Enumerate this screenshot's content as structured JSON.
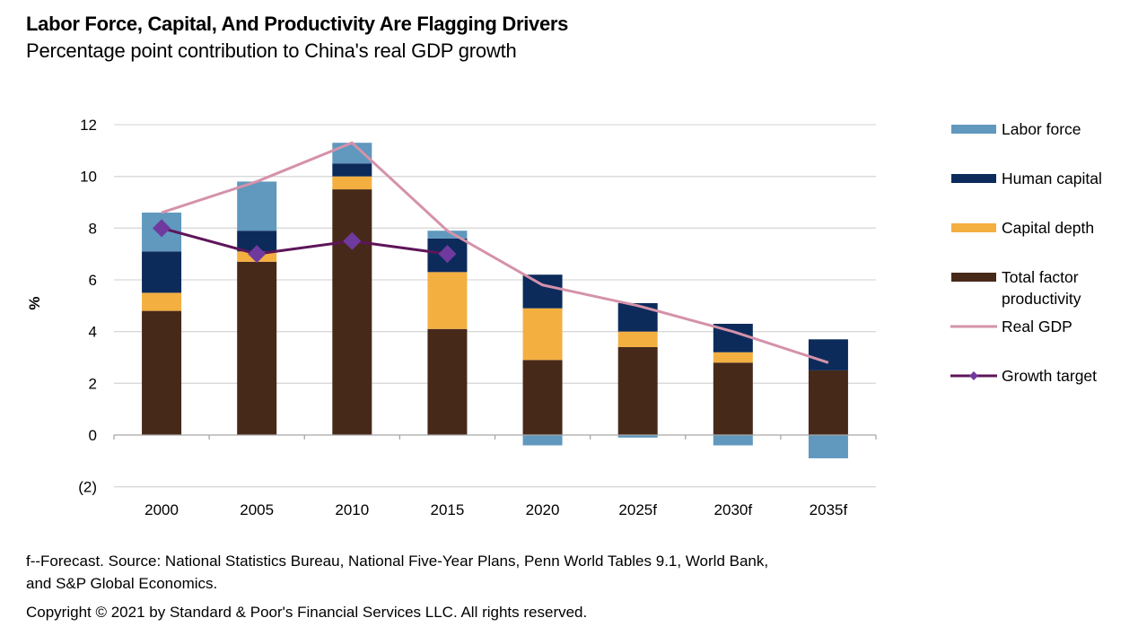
{
  "header": {
    "title": "Labor Force, Capital, And Productivity Are Flagging Drivers",
    "subtitle": "Percentage point contribution to China's real GDP growth"
  },
  "footer": {
    "source_line1": "f--Forecast. Source: National Statistics Bureau, National Five-Year Plans, Penn World Tables 9.1, World Bank,",
    "source_line2": "and S&P Global Economics.",
    "copyright": "Copyright © 2021 by Standard & Poor's Financial Services LLC. All rights reserved."
  },
  "chart_data": {
    "type": "bar",
    "stacked": true,
    "title": "Labor Force, Capital, And Productivity Are Flagging Drivers",
    "subtitle": "Percentage point contribution to China's real GDP growth",
    "xlabel": "",
    "ylabel": "%",
    "ylim": [
      -2,
      12
    ],
    "yticks": [
      -2,
      0,
      2,
      4,
      6,
      8,
      10,
      12
    ],
    "ytick_labels": [
      "(2)",
      "0",
      "2",
      "4",
      "6",
      "8",
      "10",
      "12"
    ],
    "grid": true,
    "legend_position": "right",
    "categories": [
      "2000",
      "2005",
      "2010",
      "2015",
      "2020",
      "2025f",
      "2030f",
      "2035f"
    ],
    "series": [
      {
        "name": "Total factor productivity",
        "kind": "bar",
        "color": "#47291A",
        "values": [
          4.8,
          6.7,
          9.5,
          4.1,
          2.9,
          3.4,
          2.8,
          2.5
        ]
      },
      {
        "name": "Capital depth",
        "kind": "bar",
        "color": "#F4AF41",
        "values": [
          0.7,
          0.4,
          0.5,
          2.2,
          2.0,
          0.6,
          0.4,
          0.0
        ]
      },
      {
        "name": "Human capital",
        "kind": "bar",
        "color": "#0C2B5B",
        "values": [
          1.6,
          0.8,
          0.5,
          1.3,
          1.3,
          1.1,
          1.1,
          1.2
        ]
      },
      {
        "name": "Labor force",
        "kind": "bar",
        "color": "#6098BE",
        "values": [
          1.5,
          1.9,
          0.8,
          0.3,
          -0.4,
          -0.1,
          -0.4,
          -0.9
        ]
      },
      {
        "name": "Real GDP",
        "kind": "line",
        "color": "#D592AA",
        "values": [
          8.6,
          9.8,
          11.3,
          7.9,
          5.8,
          5.0,
          4.0,
          2.8
        ]
      },
      {
        "name": "Growth target",
        "kind": "line",
        "marker": "diamond",
        "color": "#5E1559",
        "marker_color": "#6F3A9E",
        "values": [
          8.0,
          7.0,
          7.5,
          7.0,
          null,
          null,
          null,
          null
        ]
      }
    ],
    "legend": [
      {
        "name": "Labor force",
        "kind": "bar",
        "color": "#6098BE"
      },
      {
        "name": "Human capital",
        "kind": "bar",
        "color": "#0C2B5B"
      },
      {
        "name": "Capital depth",
        "kind": "bar",
        "color": "#F4AF41"
      },
      {
        "name": "Total factor productivity",
        "lines": [
          "Total factor",
          "productivity"
        ],
        "kind": "bar",
        "color": "#47291A"
      },
      {
        "name": "Real GDP",
        "kind": "line",
        "color": "#D592AA"
      },
      {
        "name": "Growth target",
        "kind": "line-diamond",
        "color": "#5E1559",
        "marker_color": "#6F3A9E"
      }
    ]
  }
}
